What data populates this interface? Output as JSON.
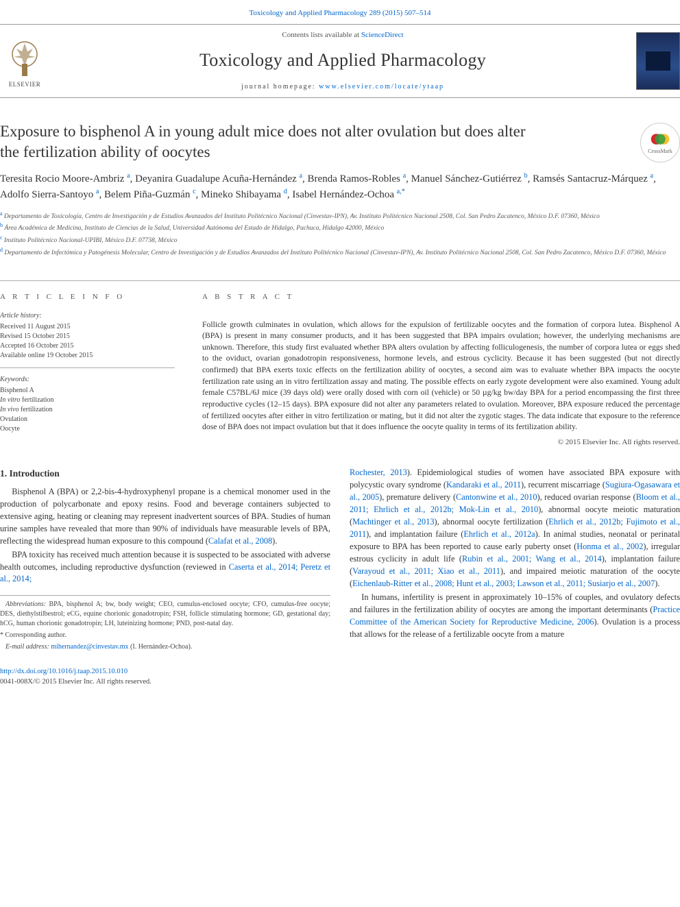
{
  "top_citation": "Toxicology and Applied Pharmacology 289 (2015) 507–514",
  "masthead": {
    "contents_prefix": "Contents lists available at ",
    "contents_link": "ScienceDirect",
    "journal_name": "Toxicology and Applied Pharmacology",
    "homepage_prefix": "journal homepage: ",
    "homepage_url": "www.elsevier.com/locate/ytaap",
    "publisher": "ELSEVIER"
  },
  "crossmark_label": "CrossMark",
  "title": "Exposure to bisphenol A in young adult mice does not alter ovulation but does alter the fertilization ability of oocytes",
  "authors_html": "Teresita Rocio Moore-Ambriz <sup>a</sup>, Deyanira Guadalupe Acuña-Hernández <sup>a</sup>, Brenda Ramos-Robles <sup>a</sup>, Manuel Sánchez-Gutiérrez <sup>b</sup>, Ramsés Santacruz-Márquez <sup>a</sup>, Adolfo Sierra-Santoyo <sup>a</sup>, Belem Piña-Guzmán <sup>c</sup>, Mineko Shibayama <sup>d</sup>, Isabel Hernández-Ochoa <sup>a,*</sup>",
  "affiliations": [
    {
      "marker": "a",
      "text": "Departamento de Toxicología, Centro de Investigación y de Estudios Avanzados del Instituto Politécnico Nacional (Cinvestav-IPN), Av. Instituto Politécnico Nacional 2508, Col. San Pedro Zacatenco, México D.F. 07360, México"
    },
    {
      "marker": "b",
      "text": "Área Académica de Medicina, Instituto de Ciencias de la Salud, Universidad Autónoma del Estado de Hidalgo, Pachuca, Hidalgo 42000, México"
    },
    {
      "marker": "c",
      "text": "Instituto Politécnico Nacional-UPIBI, México D.F. 07738, México"
    },
    {
      "marker": "d",
      "text": "Departamento de Infectómica y Patogénesis Molecular, Centro de Investigación y de Estudios Avanzados del Instituto Politécnico Nacional (Cinvestav-IPN), Av. Instituto Politécnico Nacional 2508, Col. San Pedro Zacatenco, México D.F. 07360, México"
    }
  ],
  "info": {
    "label": "A R T I C L E   I N F O",
    "history_label": "Article history:",
    "history": [
      "Received 11 August 2015",
      "Revised 15 October 2015",
      "Accepted 16 October 2015",
      "Available online 19 October 2015"
    ],
    "keywords_label": "Keywords:",
    "keywords": [
      "Bisphenol A",
      "In vitro fertilization",
      "In vivo fertilization",
      "Ovulation",
      "Oocyte"
    ]
  },
  "abstract": {
    "label": "A B S T R A C T",
    "text": "Follicle growth culminates in ovulation, which allows for the expulsion of fertilizable oocytes and the formation of corpora lutea. Bisphenol A (BPA) is present in many consumer products, and it has been suggested that BPA impairs ovulation; however, the underlying mechanisms are unknown. Therefore, this study first evaluated whether BPA alters ovulation by affecting folliculogenesis, the number of corpora lutea or eggs shed to the oviduct, ovarian gonadotropin responsiveness, hormone levels, and estrous cyclicity. Because it has been suggested (but not directly confirmed) that BPA exerts toxic effects on the fertilization ability of oocytes, a second aim was to evaluate whether BPA impacts the oocyte fertilization rate using an in vitro fertilization assay and mating. The possible effects on early zygote development were also examined. Young adult female C57BL/6J mice (39 days old) were orally dosed with corn oil (vehicle) or 50 µg/kg bw/day BPA for a period encompassing the first three reproductive cycles (12–15 days). BPA exposure did not alter any parameters related to ovulation. Moreover, BPA exposure reduced the percentage of fertilized oocytes after either in vitro fertilization or mating, but it did not alter the zygotic stages. The data indicate that exposure to the reference dose of BPA does not impact ovulation but that it does influence the oocyte quality in terms of its fertilization ability.",
    "copyright": "© 2015 Elsevier Inc. All rights reserved."
  },
  "body": {
    "section_heading": "1. Introduction",
    "p1": "Bisphenol A (BPA) or 2,2-bis-4-hydroxyphenyl propane is a chemical monomer used in the production of polycarbonate and epoxy resins. Food and beverage containers subjected to extensive aging, heating or cleaning may represent inadvertent sources of BPA. Studies of human urine samples have revealed that more than 90% of individuals have measurable levels of BPA, reflecting the widespread human exposure to this compound (",
    "p1_cite": "Calafat et al., 2008",
    "p1_end": ").",
    "p2": "BPA toxicity has received much attention because it is suspected to be associated with adverse health outcomes, including reproductive dysfunction (reviewed in ",
    "p2_cite": "Caserta et al., 2014; Peretz et al., 2014; ",
    "p3_cite_start": "Rochester, 2013",
    "p3_a": "). Epidemiological studies of women have associated BPA exposure with polycystic ovary syndrome (",
    "p3_cite1": "Kandaraki et al., 2011",
    "p3_b": "), recurrent miscarriage (",
    "p3_cite2": "Sugiura-Ogasawara et al., 2005",
    "p3_c": "), premature delivery (",
    "p3_cite3": "Cantonwine et al., 2010",
    "p3_d": "), reduced ovarian response (",
    "p3_cite4": "Bloom et al., 2011; Ehrlich et al., 2012b; Mok-Lin et al., 2010",
    "p3_e": "), abnormal oocyte meiotic maturation (",
    "p3_cite5": "Machtinger et al., 2013",
    "p3_f": "), abnormal oocyte fertilization (",
    "p3_cite6": "Ehrlich et al., 2012b; Fujimoto et al., 2011",
    "p3_g": "), and implantation failure (",
    "p3_cite7": "Ehrlich et al., 2012a",
    "p3_h": "). In animal studies, neonatal or perinatal exposure to BPA has been reported to cause early puberty onset (",
    "p3_cite8": "Honma et al., 2002",
    "p3_i": "), irregular estrous cyclicity in adult life (",
    "p3_cite9": "Rubin et al., 2001; Wang et al., 2014",
    "p3_j": "), implantation failure (",
    "p3_cite10": "Varayoud et al., 2011; Xiao et al., 2011",
    "p3_k": "), and impaired meiotic maturation of the oocyte (",
    "p3_cite11": "Eichenlaub-Ritter et al., 2008; Hunt et al., 2003; Lawson et al., 2011; Susiarjo et al., 2007",
    "p3_l": ").",
    "p4_a": "In humans, infertility is present in approximately 10–15% of couples, and ovulatory defects and failures in the fertilization ability of oocytes are among the important determinants (",
    "p4_cite": "Practice Committee of the American Society for Reproductive Medicine, 2006",
    "p4_b": "). Ovulation is a process that allows for the release of a fertilizable oocyte from a mature"
  },
  "footnotes": {
    "abbr_label": "Abbreviations:",
    "abbr_text": " BPA, bisphenol A; bw, body weight; CEO, cumulus-enclosed oocyte; CFO, cumulus-free oocyte; DES, diethylstilbestrol; eCG, equine chorionic gonadotropin; FSH, follicle stimulating hormone; GD, gestational day; hCG, human chorionic gonadotropin; LH, luteinizing hormone; PND, post-natal day.",
    "corr_label": "* Corresponding author.",
    "email_label": "E-mail address: ",
    "email": "mihernandez@cinvestav.mx",
    "email_person": " (I. Hernández-Ochoa)."
  },
  "footer": {
    "doi": "http://dx.doi.org/10.1016/j.taap.2015.10.010",
    "issn_line": "0041-008X/© 2015 Elsevier Inc. All rights reserved."
  },
  "colors": {
    "link": "#0066cc",
    "text": "#333333",
    "rule": "#999999",
    "cover_bg": "#1a2d5a"
  },
  "typography": {
    "journal_name_fontsize": 26,
    "title_fontsize": 23,
    "authors_fontsize": 15,
    "body_fontsize": 12.3,
    "abstract_fontsize": 11.7
  }
}
